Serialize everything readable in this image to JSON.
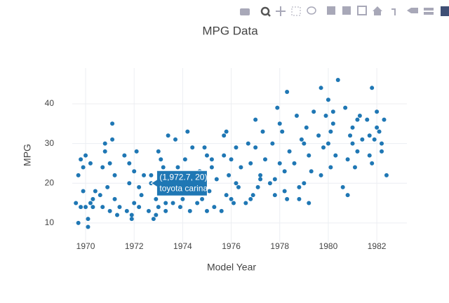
{
  "chart_data": {
    "type": "scatter",
    "title": "MPG Data",
    "x_label": "Model Year",
    "y_label": "MPG",
    "xlim": [
      1969.45,
      1983.24
    ],
    "ylim": [
      5.2,
      49
    ],
    "xticks": [
      1970,
      1972,
      1974,
      1976,
      1978,
      1980,
      1982
    ],
    "yticks": [
      10,
      20,
      30,
      40
    ],
    "grid": true,
    "series": [
      {
        "color": "#1f77b4",
        "x": [
          1969.6,
          1969.7,
          1969.8,
          1969.9,
          1970.0,
          1970.1,
          1970.2,
          1970.3,
          1970.4,
          1969.7,
          1969.9,
          1970.1,
          1970.3,
          1970.0,
          1969.8,
          1970.2,
          1970.6,
          1970.7,
          1970.8,
          1970.9,
          1971.0,
          1971.1,
          1971.2,
          1971.3,
          1971.4,
          1970.8,
          1971.0,
          1971.2,
          1970.7,
          1971.1,
          1971.6,
          1971.7,
          1971.8,
          1971.9,
          1972.0,
          1972.1,
          1972.2,
          1972.3,
          1972.4,
          1971.8,
          1972.0,
          1972.2,
          1971.9,
          1972.6,
          1972.7,
          1972.8,
          1972.9,
          1973.0,
          1973.1,
          1973.2,
          1973.3,
          1973.4,
          1972.7,
          1973.0,
          1973.2,
          1972.9,
          1973.3,
          1973.6,
          1973.7,
          1973.8,
          1973.9,
          1974.0,
          1974.1,
          1974.2,
          1974.3,
          1974.4,
          1973.8,
          1974.0,
          1974.2,
          1974.6,
          1974.7,
          1974.8,
          1974.9,
          1975.0,
          1975.1,
          1975.2,
          1975.3,
          1975.4,
          1974.8,
          1975.0,
          1975.2,
          1975.6,
          1975.7,
          1975.8,
          1975.9,
          1976.0,
          1976.1,
          1976.2,
          1976.3,
          1976.4,
          1975.8,
          1976.0,
          1976.2,
          1975.7,
          1976.6,
          1976.7,
          1976.8,
          1976.9,
          1977.0,
          1977.1,
          1977.2,
          1977.3,
          1977.4,
          1976.8,
          1977.0,
          1977.2,
          1977.6,
          1977.7,
          1977.8,
          1977.9,
          1978.0,
          1978.1,
          1978.2,
          1978.3,
          1978.4,
          1977.8,
          1978.0,
          1978.2,
          1978.3,
          1978.6,
          1978.7,
          1978.8,
          1978.9,
          1979.0,
          1979.1,
          1979.2,
          1979.3,
          1979.4,
          1978.8,
          1979.0,
          1979.2,
          1979.6,
          1979.7,
          1979.8,
          1979.9,
          1980.0,
          1980.1,
          1980.2,
          1980.3,
          1980.4,
          1979.7,
          1980.0,
          1980.2,
          1980.1,
          1980.6,
          1980.7,
          1980.8,
          1980.9,
          1981.0,
          1981.1,
          1981.2,
          1981.3,
          1981.4,
          1980.8,
          1981.0,
          1981.2,
          1981.6,
          1981.7,
          1981.8,
          1981.9,
          1982.0,
          1982.1,
          1982.2,
          1982.3,
          1982.4,
          1981.8,
          1982.0,
          1982.2,
          1981.7
        ],
        "values": [
          15,
          10,
          26,
          18,
          14,
          9,
          15,
          14,
          18,
          22,
          24,
          11,
          16,
          27,
          14,
          25,
          17,
          14,
          28,
          19,
          25,
          35,
          22,
          12,
          14,
          30,
          13,
          16,
          24,
          31,
          27,
          13,
          20,
          11,
          23,
          28,
          14,
          17,
          22,
          25,
          15,
          19,
          12,
          13,
          20,
          11,
          16,
          14,
          26,
          18,
          13,
          32,
          22,
          28,
          24,
          12,
          15,
          15,
          31,
          24,
          14,
          16,
          26,
          20,
          13,
          29,
          19,
          22,
          33,
          15,
          23,
          16,
          29,
          13,
          18,
          24,
          14,
          21,
          19,
          27,
          26,
          13,
          32,
          17,
          22,
          26,
          15,
          29,
          19,
          24,
          33,
          16,
          20,
          27,
          15,
          30,
          25,
          17,
          36,
          19,
          22,
          33,
          26,
          16,
          29,
          21,
          20,
          30,
          17,
          39,
          25,
          33,
          18,
          43,
          28,
          21,
          35,
          23,
          16,
          25,
          37,
          16,
          31,
          20,
          34,
          27,
          23,
          38,
          19,
          30,
          15,
          32,
          44,
          29,
          37,
          41,
          24,
          35,
          27,
          46,
          22,
          30,
          38,
          33,
          19,
          39,
          26,
          32,
          34,
          24,
          28,
          37,
          31,
          17,
          30,
          36,
          36,
          27,
          44,
          31,
          38,
          33,
          28,
          36,
          22,
          25,
          34,
          30,
          32
        ]
      }
    ],
    "hover": {
      "x": 1972.7,
      "y": 20,
      "label": "(1,972.7, 20)",
      "text": "toyota carina"
    }
  }
}
